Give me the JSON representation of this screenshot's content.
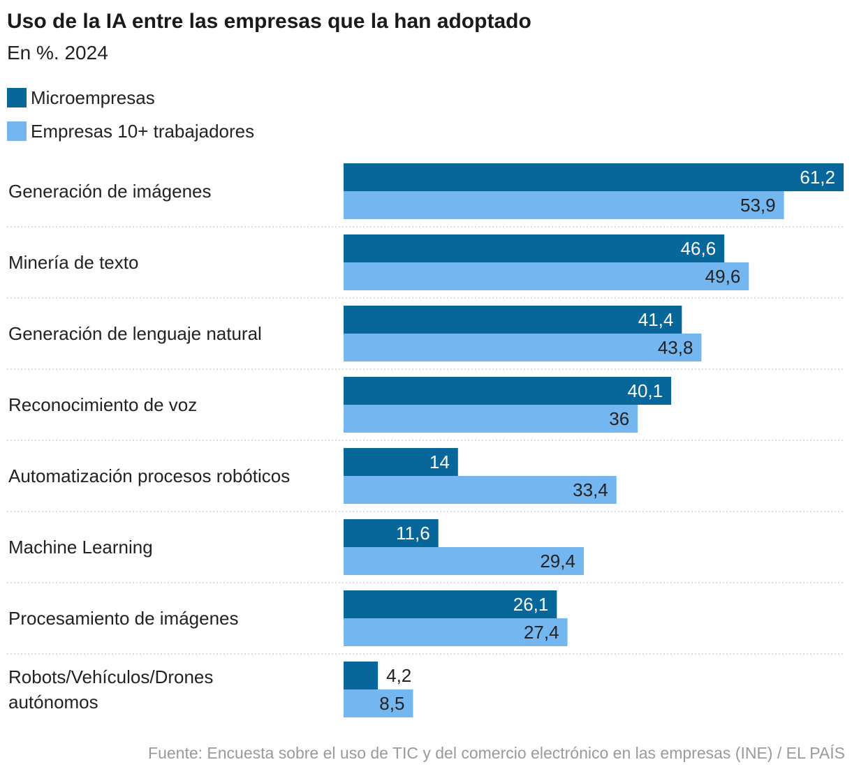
{
  "chart_data": {
    "type": "bar",
    "orientation": "horizontal",
    "title": "Uso de la IA entre las empresas que la han adoptado",
    "subtitle": "En %. 2024",
    "categories": [
      [
        "Generación de imágenes"
      ],
      [
        "Minería de texto"
      ],
      [
        "Generación de lenguaje natural"
      ],
      [
        "Reconocimiento de voz"
      ],
      [
        "Automatización procesos robóticos"
      ],
      [
        "Machine Learning"
      ],
      [
        "Procesamiento de imágenes"
      ],
      [
        "Robots/Vehículos/Drones",
        "autónomos"
      ]
    ],
    "series": [
      {
        "name": "Microempresas",
        "color": "#07679b",
        "label_color": "#ffffff",
        "values": [
          61.2,
          46.6,
          41.4,
          40.1,
          14,
          11.6,
          26.1,
          4.2
        ],
        "labels": [
          "61,2",
          "46,6",
          "41,4",
          "40,1",
          "14",
          "11,6",
          "26,1",
          "4,2"
        ]
      },
      {
        "name": "Empresas 10+ trabajadores",
        "color": "#74b6f0",
        "label_color": "#222222",
        "values": [
          53.9,
          49.6,
          43.8,
          36,
          33.4,
          29.4,
          27.4,
          8.5
        ],
        "labels": [
          "53,9",
          "49,6",
          "43,8",
          "36",
          "33,4",
          "29,4",
          "27,4",
          "8,5"
        ]
      }
    ],
    "xlim": [
      0,
      61.2
    ],
    "grid": false,
    "legend": "top-left",
    "source": "Fuente: Encuesta sobre el uso de TIC y del comercio electrónico en las empresas (INE) / EL PAÍS"
  }
}
